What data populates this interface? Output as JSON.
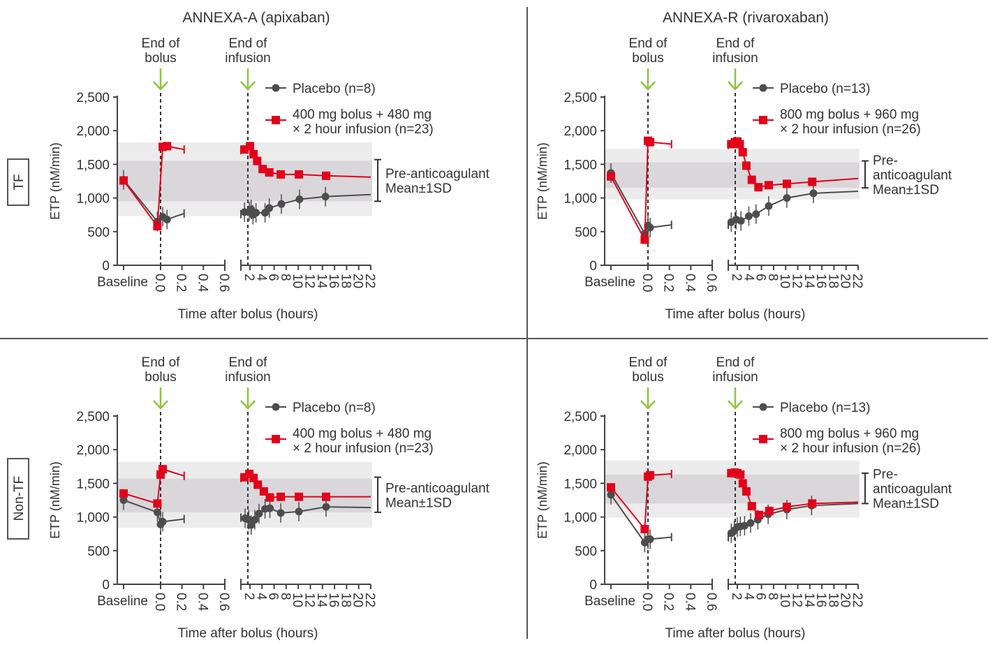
{
  "column_titles": [
    "ANNEXA-A (apixaban)",
    "ANNEXA-R (rivaroxaban)"
  ],
  "row_labels": [
    "TF",
    "Non-TF"
  ],
  "annotations": {
    "bolus": [
      "End of",
      "bolus"
    ],
    "infusion": [
      "End of",
      "infusion"
    ]
  },
  "shared_axes": {
    "ylabel": "ETP (nM/min)",
    "xlabel": "Time after bolus (hours)",
    "y_ticks": [
      "0",
      "500",
      "1,000",
      "1,500",
      "2,000",
      "2,500"
    ],
    "x_ticks_left": [
      "Baseline",
      "0.0",
      "0.2",
      "0.4",
      "0.6"
    ],
    "x_ticks_right": [
      "2",
      "4",
      "6",
      "8",
      "10",
      "12",
      "14",
      "16",
      "18",
      "20",
      "22"
    ]
  },
  "colors": {
    "placebo": "#4d4d4d",
    "treatment": "#e2001a",
    "arrow": "#8cc63f",
    "band_outer": "#ececec",
    "band_inner": "#d9d7da"
  },
  "chart_data": [
    {
      "type": "line",
      "ylim": [
        0,
        2500
      ],
      "legend": [
        "Placebo (n=8)",
        "400 mg bolus + 480 mg",
        "× 2 hour infusion (n=23)"
      ],
      "band_label": [
        "Pre-anticoagulant",
        "Mean±1SD"
      ],
      "band": {
        "mean": 1250,
        "inner": [
          950,
          1550
        ],
        "outer": [
          730,
          1830
        ]
      },
      "series": [
        {
          "values_left": [
            [
              -0.12,
              1270
            ],
            [
              -0.03,
              650
            ],
            [
              0.02,
              720
            ],
            [
              0.06,
              680
            ],
            [
              0.22,
              770
            ]
          ],
          "values_right": [
            [
              0.5,
              760
            ],
            [
              1.1,
              790
            ],
            [
              1.9,
              800
            ],
            [
              2.2,
              830
            ],
            [
              2.5,
              750
            ],
            [
              3,
              780
            ],
            [
              4.5,
              780
            ],
            [
              5.2,
              850
            ],
            [
              7.2,
              910
            ],
            [
              10.2,
              980
            ],
            [
              14.5,
              1020
            ],
            [
              22,
              1050
            ]
          ]
        },
        {
          "values_left": [
            [
              -0.12,
              1260
            ],
            [
              -0.03,
              580
            ],
            [
              0.02,
              1760
            ],
            [
              0.06,
              1770
            ],
            [
              0.22,
              1720
            ]
          ],
          "values_right": [
            [
              0.5,
              1710
            ],
            [
              1.1,
              1720
            ],
            [
              2,
              1770
            ],
            [
              2.6,
              1650
            ],
            [
              3.2,
              1550
            ],
            [
              4.1,
              1430
            ],
            [
              5.2,
              1380
            ],
            [
              7.1,
              1350
            ],
            [
              10.1,
              1350
            ],
            [
              14.6,
              1330
            ],
            [
              22,
              1310
            ]
          ]
        }
      ]
    },
    {
      "type": "line",
      "ylim": [
        0,
        2500
      ],
      "legend": [
        "Placebo (n=13)",
        "800 mg bolus + 960 mg",
        "× 2 hour infusion (n=26)"
      ],
      "band_label": [
        "Pre-",
        "anticoagulant",
        "Mean±1SD"
      ],
      "band": {
        "mean": 1350,
        "inner": [
          1150,
          1530
        ],
        "outer": [
          980,
          1730
        ]
      },
      "series": [
        {
          "values_left": [
            [
              -0.12,
              1370
            ],
            [
              -0.03,
              470
            ],
            [
              0.0,
              590
            ],
            [
              0.02,
              560
            ],
            [
              0.22,
              600
            ]
          ],
          "values_right": [
            [
              0.5,
              600
            ],
            [
              1.0,
              640
            ],
            [
              1.8,
              680
            ],
            [
              2.6,
              660
            ],
            [
              3.9,
              730
            ],
            [
              5.1,
              760
            ],
            [
              7.2,
              880
            ],
            [
              10.2,
              1000
            ],
            [
              14.6,
              1070
            ],
            [
              22,
              1100
            ]
          ]
        },
        {
          "values_left": [
            [
              -0.12,
              1320
            ],
            [
              -0.03,
              380
            ],
            [
              0.0,
              1850
            ],
            [
              0.02,
              1830
            ],
            [
              0.22,
              1800
            ]
          ],
          "values_right": [
            [
              0.5,
              1790
            ],
            [
              1.0,
              1800
            ],
            [
              1.6,
              1830
            ],
            [
              2.0,
              1840
            ],
            [
              2.4,
              1800
            ],
            [
              2.9,
              1680
            ],
            [
              3.5,
              1480
            ],
            [
              4.4,
              1270
            ],
            [
              5.5,
              1160
            ],
            [
              7.2,
              1190
            ],
            [
              10.2,
              1210
            ],
            [
              14.4,
              1240
            ],
            [
              22,
              1290
            ]
          ]
        }
      ]
    },
    {
      "type": "line",
      "ylim": [
        0,
        2500
      ],
      "legend": [
        "Placebo (n=8)",
        "400 mg bolus + 480 mg",
        "× 2 hour infusion (n=23)"
      ],
      "band_label": [
        "Pre-anticoagulant",
        "Mean±1SD"
      ],
      "band": {
        "mean": 1310,
        "inner": [
          1070,
          1570
        ],
        "outer": [
          840,
          1820
        ]
      },
      "series": [
        {
          "values_left": [
            [
              -0.12,
              1250
            ],
            [
              -0.03,
              1070
            ],
            [
              0.0,
              890
            ],
            [
              0.02,
              930
            ],
            [
              0.22,
              970
            ]
          ],
          "values_right": [
            [
              0.5,
              990
            ],
            [
              1.2,
              980
            ],
            [
              1.8,
              960
            ],
            [
              2.2,
              880
            ],
            [
              2.8,
              960
            ],
            [
              3.5,
              1050
            ],
            [
              4.5,
              1120
            ],
            [
              5.3,
              1130
            ],
            [
              7.1,
              1060
            ],
            [
              10.1,
              1080
            ],
            [
              14.6,
              1150
            ],
            [
              22,
              1140
            ]
          ]
        },
        {
          "values_left": [
            [
              -0.12,
              1350
            ],
            [
              -0.03,
              1200
            ],
            [
              0.0,
              1630
            ],
            [
              0.02,
              1710
            ],
            [
              0.22,
              1610
            ]
          ],
          "values_right": [
            [
              0.5,
              1580
            ],
            [
              1.1,
              1590
            ],
            [
              1.9,
              1640
            ],
            [
              2.6,
              1580
            ],
            [
              3.3,
              1480
            ],
            [
              4.3,
              1380
            ],
            [
              5.3,
              1290
            ],
            [
              7.1,
              1300
            ],
            [
              10.1,
              1300
            ],
            [
              14.6,
              1300
            ],
            [
              22,
              1300
            ]
          ]
        }
      ]
    },
    {
      "type": "line",
      "ylim": [
        0,
        2500
      ],
      "legend": [
        "Placebo (n=13)",
        "800 mg bolus + 960 mg",
        "× 2 hour infusion (n=26)"
      ],
      "band_label": [
        "Pre-",
        "anticoagulant",
        "Mean±1SD"
      ],
      "band": {
        "mean": 1410,
        "inner": [
          1200,
          1630
        ],
        "outer": [
          990,
          1840
        ]
      },
      "series": [
        {
          "values_left": [
            [
              -0.12,
              1330
            ],
            [
              -0.03,
              620
            ],
            [
              0.0,
              670
            ],
            [
              0.02,
              670
            ],
            [
              0.22,
              700
            ]
          ],
          "values_right": [
            [
              0.5,
              700
            ],
            [
              1.0,
              760
            ],
            [
              1.5,
              800
            ],
            [
              2.0,
              850
            ],
            [
              2.5,
              860
            ],
            [
              3.2,
              870
            ],
            [
              4.2,
              910
            ],
            [
              5.4,
              960
            ],
            [
              7.1,
              1040
            ],
            [
              10.2,
              1110
            ],
            [
              14.3,
              1170
            ],
            [
              22,
              1200
            ]
          ]
        },
        {
          "values_left": [
            [
              -0.12,
              1440
            ],
            [
              -0.03,
              820
            ],
            [
              0.0,
              1600
            ],
            [
              0.02,
              1620
            ],
            [
              0.22,
              1640
            ]
          ],
          "values_right": [
            [
              0.5,
              1650
            ],
            [
              1.0,
              1650
            ],
            [
              1.6,
              1660
            ],
            [
              2.0,
              1650
            ],
            [
              2.5,
              1630
            ],
            [
              2.9,
              1500
            ],
            [
              3.5,
              1380
            ],
            [
              4.4,
              1160
            ],
            [
              5.6,
              1030
            ],
            [
              7.3,
              1090
            ],
            [
              10.2,
              1150
            ],
            [
              14.4,
              1200
            ],
            [
              22,
              1220
            ]
          ]
        }
      ]
    }
  ]
}
